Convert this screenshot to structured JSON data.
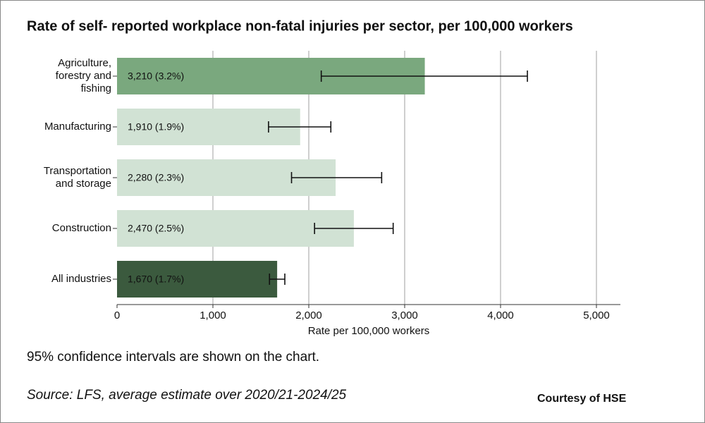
{
  "chart_data": {
    "type": "bar",
    "orientation": "horizontal",
    "title": "Rate of self- reported workplace non-fatal injuries per sector, per 100,000 workers",
    "categories": [
      [
        "Agriculture,",
        "forestry and",
        "fishing"
      ],
      [
        "Manufacturing"
      ],
      [
        "Transportation",
        "and storage"
      ],
      [
        "Construction"
      ],
      [
        "All industries"
      ]
    ],
    "values": [
      3210,
      1910,
      2280,
      2470,
      1670
    ],
    "value_labels": [
      "3,210 (3.2%)",
      "1,910 (1.9%)",
      "2,280 (2.3%)",
      "2,470 (2.5%)",
      "1,670 (1.7%)"
    ],
    "ci_low": [
      2130,
      1580,
      1820,
      2060,
      1590
    ],
    "ci_high": [
      4280,
      2230,
      2760,
      2880,
      1750
    ],
    "colors": [
      "#7aa87e",
      "#d1e2d4",
      "#d1e2d4",
      "#d1e2d4",
      "#3b5a3e"
    ],
    "xlim": [
      0,
      5250
    ],
    "xticks": [
      0,
      {
        "value": 1000,
        "label": "1,000"
      },
      {
        "value": 2000,
        "label": "2,000"
      },
      {
        "value": 3000,
        "label": "3,000"
      },
      {
        "value": 4000,
        "label": "4,000"
      },
      {
        "value": 5000,
        "label": "5,000"
      }
    ],
    "grid": true,
    "xlabel": "Rate per 100,000 workers",
    "note": "95% confidence intervals are shown on the chart.",
    "source": "Source: LFS, average estimate over 2020/21-2024/25",
    "credit": "Courtesy of HSE"
  }
}
